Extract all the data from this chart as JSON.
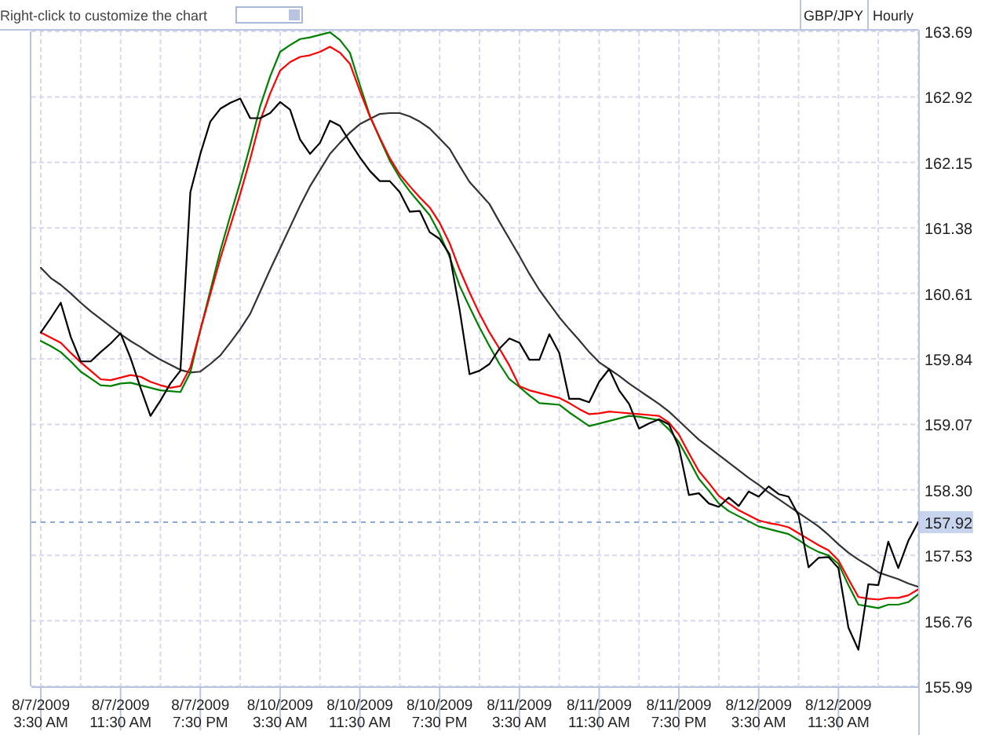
{
  "chart_data": {
    "type": "line",
    "title": "GBP/JPY",
    "subtitle": "Hourly",
    "annotations": [
      "Right-click to customize the chart"
    ],
    "categories": [
      "8/7/2009\n3:30 AM",
      null,
      null,
      null,
      null,
      null,
      null,
      null,
      "8/7/2009\n11:30 AM",
      null,
      null,
      null,
      null,
      null,
      null,
      null,
      "8/7/2009\n7:30 PM",
      null,
      null,
      null,
      null,
      null,
      null,
      null,
      "8/10/2009\n3:30 AM",
      null,
      null,
      null,
      null,
      null,
      null,
      null,
      "8/10/2009\n11:30 AM",
      null,
      null,
      null,
      null,
      null,
      null,
      null,
      "8/10/2009\n7:30 PM",
      null,
      null,
      null,
      null,
      null,
      null,
      null,
      "8/11/2009\n3:30 AM",
      null,
      null,
      null,
      null,
      null,
      null,
      null,
      "8/11/2009\n11:30 AM",
      null,
      null,
      null,
      null,
      null,
      null,
      null,
      "8/11/2009\n7:30 PM",
      null,
      null,
      null,
      null,
      null,
      null,
      null,
      "8/12/2009\n3:30 AM",
      null,
      null,
      null,
      null,
      null,
      null,
      null,
      "8/12/2009\n11:30 AM",
      null,
      null,
      null,
      null,
      null,
      null,
      null,
      null
    ],
    "ylim": [
      155.99,
      163.69
    ],
    "yticks": [
      155.99,
      156.76,
      157.53,
      {
        "value": 158.3,
        "label": "158.30"
      },
      159.07,
      159.84,
      160.61,
      161.38,
      162.15,
      162.92,
      163.69
    ],
    "grid": true,
    "line_style": "solid",
    "marker": "none",
    "ref_lines": [
      {
        "axis": "y",
        "value": 157.92,
        "label": "157.92",
        "color": "#8fa8d0",
        "line_style": "dashed"
      }
    ],
    "series": [
      {
        "color": "#333333",
        "values": [
          160.91,
          160.79,
          160.71,
          160.61,
          160.5,
          160.4,
          160.31,
          160.22,
          160.13,
          160.05,
          159.98,
          159.9,
          159.83,
          159.77,
          159.71,
          159.68,
          159.69,
          159.78,
          159.88,
          160.03,
          160.19,
          160.37,
          160.63,
          160.89,
          161.14,
          161.39,
          161.64,
          161.87,
          162.06,
          162.25,
          162.38,
          162.5,
          162.6,
          162.66,
          162.72,
          162.73,
          162.73,
          162.69,
          162.63,
          162.55,
          162.43,
          162.31,
          162.11,
          161.92,
          161.79,
          161.66,
          161.45,
          161.25,
          161.05,
          160.84,
          160.65,
          160.49,
          160.33,
          160.19,
          160.06,
          159.92,
          159.8,
          159.72,
          159.64,
          159.55,
          159.47,
          159.39,
          159.31,
          159.22,
          159.11,
          159.0,
          158.89,
          158.8,
          158.71,
          158.62,
          158.53,
          158.44,
          158.36,
          158.27,
          158.19,
          158.11,
          158.03,
          157.95,
          157.87,
          157.77,
          157.66,
          157.56,
          157.48,
          157.41,
          157.33,
          157.29,
          157.25,
          157.2,
          157.16
        ]
      },
      {
        "color": "#008000",
        "values": [
          160.05,
          159.99,
          159.92,
          159.81,
          159.69,
          159.61,
          159.53,
          159.52,
          159.55,
          159.56,
          159.53,
          159.5,
          159.47,
          159.46,
          159.45,
          159.68,
          160.18,
          160.64,
          161.11,
          161.52,
          161.92,
          162.35,
          162.81,
          163.16,
          163.45,
          163.53,
          163.6,
          163.62,
          163.65,
          163.68,
          163.59,
          163.44,
          163.06,
          162.7,
          162.43,
          162.17,
          161.97,
          161.81,
          161.67,
          161.53,
          161.31,
          161.04,
          160.7,
          160.45,
          160.21,
          159.99,
          159.78,
          159.6,
          159.51,
          159.41,
          159.32,
          159.31,
          159.3,
          159.21,
          159.13,
          159.05,
          159.08,
          159.11,
          159.14,
          159.17,
          159.16,
          159.14,
          159.12,
          159.01,
          158.86,
          158.65,
          158.43,
          158.29,
          158.14,
          158.05,
          157.99,
          157.93,
          157.87,
          157.84,
          157.81,
          157.78,
          157.71,
          157.63,
          157.57,
          157.53,
          157.43,
          157.18,
          156.95,
          156.93,
          156.91,
          156.95,
          156.95,
          156.98,
          157.07
        ]
      },
      {
        "color": "#ff0000",
        "values": [
          160.15,
          160.09,
          160.03,
          159.91,
          159.8,
          159.7,
          159.6,
          159.59,
          159.62,
          159.65,
          159.63,
          159.57,
          159.53,
          159.5,
          159.52,
          159.74,
          160.18,
          160.6,
          161.02,
          161.4,
          161.78,
          162.19,
          162.64,
          162.96,
          163.23,
          163.33,
          163.39,
          163.41,
          163.45,
          163.51,
          163.44,
          163.31,
          162.99,
          162.69,
          162.44,
          162.2,
          162.01,
          161.87,
          161.74,
          161.62,
          161.44,
          161.2,
          160.89,
          160.62,
          160.37,
          160.15,
          159.96,
          159.76,
          159.52,
          159.47,
          159.44,
          159.41,
          159.38,
          159.32,
          159.25,
          159.19,
          159.2,
          159.22,
          159.21,
          159.2,
          159.19,
          159.18,
          159.17,
          159.09,
          158.95,
          158.73,
          158.52,
          158.38,
          158.23,
          158.14,
          158.06,
          158.0,
          157.94,
          157.91,
          157.89,
          157.86,
          157.79,
          157.72,
          157.65,
          157.59,
          157.47,
          157.25,
          157.04,
          157.02,
          157.01,
          157.03,
          157.03,
          157.06,
          157.13
        ]
      },
      {
        "color": "#000000",
        "values": [
          160.15,
          160.32,
          160.5,
          160.1,
          159.81,
          159.81,
          159.92,
          160.02,
          160.14,
          159.85,
          159.5,
          159.17,
          159.35,
          159.55,
          159.7,
          161.8,
          162.25,
          162.63,
          162.78,
          162.85,
          162.9,
          162.67,
          162.67,
          162.73,
          162.86,
          162.77,
          162.42,
          162.25,
          162.38,
          162.64,
          162.58,
          162.39,
          162.21,
          162.05,
          161.93,
          161.93,
          161.8,
          161.57,
          161.58,
          161.33,
          161.25,
          161.07,
          160.42,
          159.66,
          159.7,
          159.78,
          159.96,
          160.08,
          160.03,
          159.83,
          159.83,
          160.13,
          159.91,
          159.37,
          159.37,
          159.33,
          159.57,
          159.72,
          159.47,
          159.31,
          159.02,
          159.08,
          159.13,
          159.07,
          158.8,
          158.24,
          158.26,
          158.14,
          158.1,
          158.21,
          158.11,
          158.28,
          158.22,
          158.34,
          158.25,
          158.22,
          158.0,
          157.39,
          157.5,
          157.51,
          157.38,
          156.68,
          156.42,
          157.19,
          157.18,
          157.69,
          157.38,
          157.7,
          157.92
        ]
      }
    ]
  }
}
